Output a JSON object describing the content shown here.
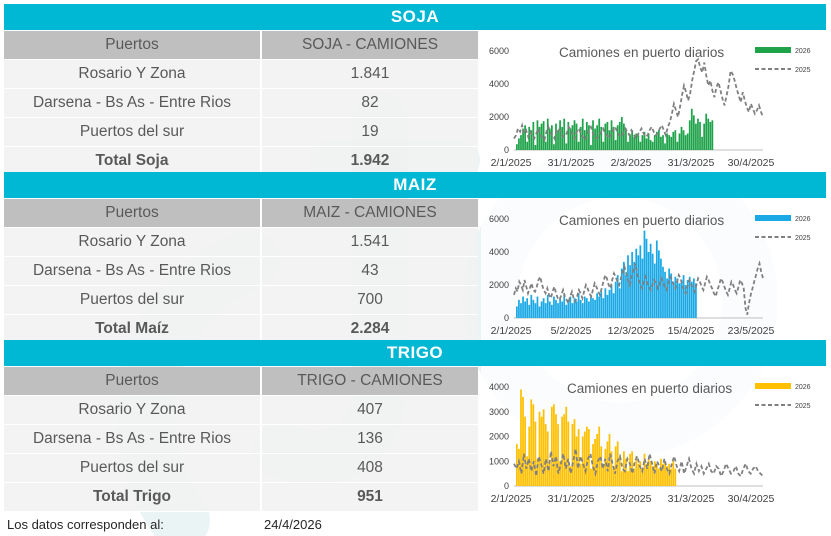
{
  "sections": [
    {
      "key": "soja",
      "title": "SOJA",
      "table": {
        "col1": "Puertos",
        "col2": "SOJA - CAMIONES",
        "rows": [
          {
            "label": "Rosario Y Zona",
            "value": "1.841"
          },
          {
            "label": "Darsena - Bs As - Entre Rios",
            "value": "82"
          },
          {
            "label": "Puertos del sur",
            "value": "19"
          }
        ],
        "total": {
          "label": "Total Soja",
          "value": "1.942"
        }
      }
    },
    {
      "key": "maiz",
      "title": "MAIZ",
      "table": {
        "col1": "Puertos",
        "col2": "MAIZ - CAMIONES",
        "rows": [
          {
            "label": "Rosario Y Zona",
            "value": "1.541"
          },
          {
            "label": "Darsena - Bs As - Entre Rios",
            "value": "43"
          },
          {
            "label": "Puertos del sur",
            "value": "700"
          }
        ],
        "total": {
          "label": "Total Maíz",
          "value": "2.284"
        }
      }
    },
    {
      "key": "trigo",
      "title": "TRIGO",
      "table": {
        "col1": "Puertos",
        "col2": "TRIGO - CAMIONES",
        "rows": [
          {
            "label": "Rosario Y Zona",
            "value": "407"
          },
          {
            "label": "Darsena - Bs As - Entre Rios",
            "value": "136"
          },
          {
            "label": "Puertos del sur",
            "value": "408"
          }
        ],
        "total": {
          "label": "Total Trigo",
          "value": "951"
        }
      }
    }
  ],
  "footer": {
    "label": "Los datos corresponden al:",
    "date": "24/4/2026"
  },
  "colors": {
    "header_bar": "#00b7d4",
    "soja": "#1fa34a",
    "maiz": "#1ba9e6",
    "trigo": "#ffc000",
    "line_2025": "#808080"
  },
  "chart_data": [
    {
      "type": "bar",
      "title": "Camiones en puerto diarios",
      "series": [
        {
          "name": "2026",
          "type": "bar",
          "color": "#1fa34a",
          "values": [
            350,
            700,
            900,
            1300,
            1500,
            500,
            1400,
            1200,
            1700,
            300,
            1800,
            1400,
            1600,
            1750,
            500,
            1900,
            1300,
            1500,
            350,
            1600,
            1200,
            1800,
            1400,
            1900,
            400,
            1700,
            1300,
            1500,
            1800,
            1600,
            500,
            1400,
            1900,
            1200,
            1700,
            1500,
            300,
            1800,
            1300,
            1500,
            1900,
            1400,
            500,
            1600,
            1700,
            1200,
            1800,
            1400,
            600,
            1500,
            1700,
            2000,
            1600,
            1300,
            500,
            900,
            1200,
            800,
            1000,
            900,
            500,
            900,
            1100,
            700,
            1000,
            600,
            500,
            900,
            1100,
            1200,
            800,
            900,
            400,
            1000,
            900,
            800,
            1100,
            1200,
            500,
            1000,
            1400,
            1200,
            900,
            1000,
            1800,
            2500,
            2100,
            1600,
            1900,
            1700,
            800,
            1600,
            2200,
            1900,
            1700,
            1800
          ]
        },
        {
          "name": "2025",
          "type": "line",
          "color": "#808080",
          "values": [
            700,
            900,
            1300,
            1100,
            1500,
            1000,
            1200,
            800,
            1100,
            900,
            700,
            1000,
            1300,
            900,
            800,
            600,
            1100,
            1400,
            1000,
            900,
            700,
            1200,
            1300,
            1100,
            800,
            900,
            1000,
            1400,
            1200,
            900,
            700,
            1100,
            1300,
            1000,
            800,
            600,
            900,
            1200,
            1400,
            1000,
            800,
            700,
            900,
            1100,
            1300,
            1000,
            900,
            700,
            1000,
            1200,
            1400,
            1100,
            900,
            800,
            1000,
            1300,
            1100,
            900,
            1200,
            1000,
            700,
            900,
            1100,
            1300,
            1000,
            800,
            900,
            1200,
            1400,
            1100,
            900,
            1000,
            1300,
            1500,
            1200,
            900,
            1400,
            1700,
            2200,
            2800,
            2400,
            2000,
            2600,
            3300,
            3900,
            3500,
            3000,
            3400,
            4200,
            4800,
            5400,
            5500,
            5000,
            4700,
            5300,
            4500,
            3900,
            4200,
            3600,
            3200,
            3800,
            4100,
            3600,
            3100,
            2700,
            3300,
            3900,
            4800,
            4600,
            4200,
            3700,
            3300,
            2900,
            3500,
            3000,
            2600,
            2300,
            2800,
            2500,
            2200,
            2400,
            2700,
            2300,
            2000
          ]
        }
      ],
      "x_tick_labels": [
        "2/1/2025",
        "31/1/2025",
        "2/3/2025",
        "31/3/2025",
        "30/4/2025"
      ],
      "y_ticks": [
        0,
        2000,
        4000,
        6000
      ],
      "ylim": [
        0,
        6000
      ],
      "legend_position": "top-right"
    },
    {
      "type": "bar",
      "title": "Camiones en puerto diarios",
      "series": [
        {
          "name": "2026",
          "type": "bar",
          "color": "#1ba9e6",
          "values": [
            700,
            1100,
            900,
            1300,
            1000,
            1200,
            800,
            1400,
            1100,
            900,
            1300,
            700,
            1000,
            1200,
            900,
            1400,
            1000,
            800,
            1300,
            1100,
            900,
            1200,
            1000,
            1400,
            800,
            1100,
            1300,
            900,
            1200,
            1000,
            1500,
            1100,
            900,
            1300,
            1200,
            1000,
            1400,
            1200,
            1100,
            1500,
            1300,
            1600,
            1200,
            1800,
            1400,
            1700,
            2000,
            1500,
            2200,
            2600,
            1800,
            3000,
            3400,
            2600,
            3800,
            3200,
            4000,
            3400,
            4200,
            3800,
            4400,
            3600,
            5300,
            4800,
            4000,
            4500,
            3900,
            3300,
            4700,
            4100,
            3600,
            3100,
            2800,
            2400,
            3000,
            2700,
            2200,
            2500,
            2400,
            2100,
            2300,
            2600,
            2000,
            2300,
            2500,
            2200,
            2400,
            2100
          ]
        },
        {
          "name": "2025",
          "type": "line",
          "color": "#808080",
          "values": [
            1400,
            1800,
            1600,
            2200,
            2000,
            1700,
            2300,
            1900,
            1500,
            1800,
            2100,
            1700,
            1600,
            1900,
            2300,
            2500,
            2000,
            1700,
            1500,
            1800,
            1400,
            1200,
            1600,
            1900,
            1500,
            1200,
            1100,
            1400,
            1700,
            1300,
            1100,
            900,
            1300,
            1600,
            1200,
            1000,
            1300,
            1700,
            1500,
            1200,
            1600,
            2000,
            1800,
            1500,
            1300,
            1700,
            2100,
            1900,
            1600,
            1400,
            1800,
            2200,
            2600,
            2400,
            2000,
            1800,
            2300,
            2700,
            2500,
            2200,
            2000,
            2400,
            2800,
            3100,
            2700,
            2300,
            2000,
            2500,
            2900,
            3300,
            2800,
            2300,
            2000,
            1800,
            2200,
            2500,
            2100,
            1900,
            1700,
            2000,
            2300,
            2100,
            1800,
            2000,
            2400,
            2200,
            1900,
            1700,
            2100,
            2500,
            2300,
            2000,
            1800,
            2200,
            2600,
            2400,
            2000,
            1700,
            1500,
            1900,
            2300,
            2100,
            1800,
            1600,
            2000,
            2400,
            2200,
            1900,
            1700,
            2100,
            2500,
            2300,
            2000,
            1800,
            1500,
            1300,
            1700,
            2000,
            2400,
            2200,
            1900,
            1600,
            1400,
            1800,
            2200,
            2000,
            1700,
            1500,
            1900,
            2300,
            2100,
            1800,
            600,
            200,
            900,
            1400,
            1800,
            2200,
            2600,
            3000,
            3300,
            2800,
            2400
          ]
        }
      ],
      "x_tick_labels": [
        "2/1/2025",
        "5/2/2025",
        "12/3/2025",
        "15/4/2025",
        "23/5/2025"
      ],
      "y_ticks": [
        0,
        2000,
        4000,
        6000
      ],
      "ylim": [
        0,
        6000
      ],
      "legend_position": "top-right"
    },
    {
      "type": "bar",
      "title": "Camiones en puerto diarios",
      "series": [
        {
          "name": "2026",
          "type": "bar",
          "color": "#ffc000",
          "values": [
            1700,
            1500,
            3900,
            3600,
            2800,
            1200,
            2400,
            3500,
            3300,
            2600,
            1100,
            3000,
            2800,
            3100,
            2500,
            2200,
            900,
            3200,
            3300,
            2900,
            2500,
            1000,
            2800,
            2900,
            3200,
            2600,
            800,
            2500,
            2700,
            2000,
            2300,
            900,
            2000,
            2200,
            2400,
            2300,
            700,
            1700,
            1900,
            2100,
            2400,
            1600,
            800,
            1500,
            1800,
            2100,
            1400,
            700,
            1600,
            1800,
            1200,
            600,
            1400,
            1100,
            600,
            1300,
            1400,
            700,
            1200,
            900,
            1000,
            700,
            1300,
            900,
            1100,
            1000,
            800,
            1000,
            900,
            700,
            1100,
            900,
            1000,
            800,
            900,
            700,
            1000,
            700
          ]
        },
        {
          "name": "2025",
          "type": "line",
          "color": "#808080",
          "values": [
            900,
            700,
            1000,
            500,
            1300,
            700,
            1100,
            600,
            1000,
            400,
            1200,
            900,
            500,
            1100,
            600,
            1400,
            800,
            1200,
            500,
            900,
            1300,
            700,
            1100,
            500,
            1000,
            1500,
            700,
            1200,
            900,
            600,
            1100,
            1300,
            800,
            500,
            1000,
            1200,
            700,
            1100,
            600,
            1300,
            900,
            500,
            1000,
            1200,
            700,
            600,
            1100,
            900,
            500,
            1000,
            1200,
            800,
            600,
            1100,
            700,
            1300,
            900,
            500,
            1000,
            800,
            600,
            1100,
            700,
            500,
            900,
            1200,
            800,
            600,
            1000,
            500,
            800,
            1100,
            700,
            500,
            900,
            600,
            800,
            500,
            700,
            900,
            600,
            500,
            800,
            700,
            400,
            600,
            900,
            700,
            500,
            600,
            800,
            500,
            400,
            700,
            900,
            600,
            500,
            700,
            800,
            600,
            500,
            400
          ]
        }
      ],
      "x_tick_labels": [
        "2/1/2025",
        "31/1/2025",
        "2/3/2025",
        "31/3/2025",
        "30/4/2025"
      ],
      "y_ticks": [
        0,
        1000,
        2000,
        3000,
        4000
      ],
      "ylim": [
        0,
        4000
      ],
      "legend_position": "top-right"
    }
  ]
}
